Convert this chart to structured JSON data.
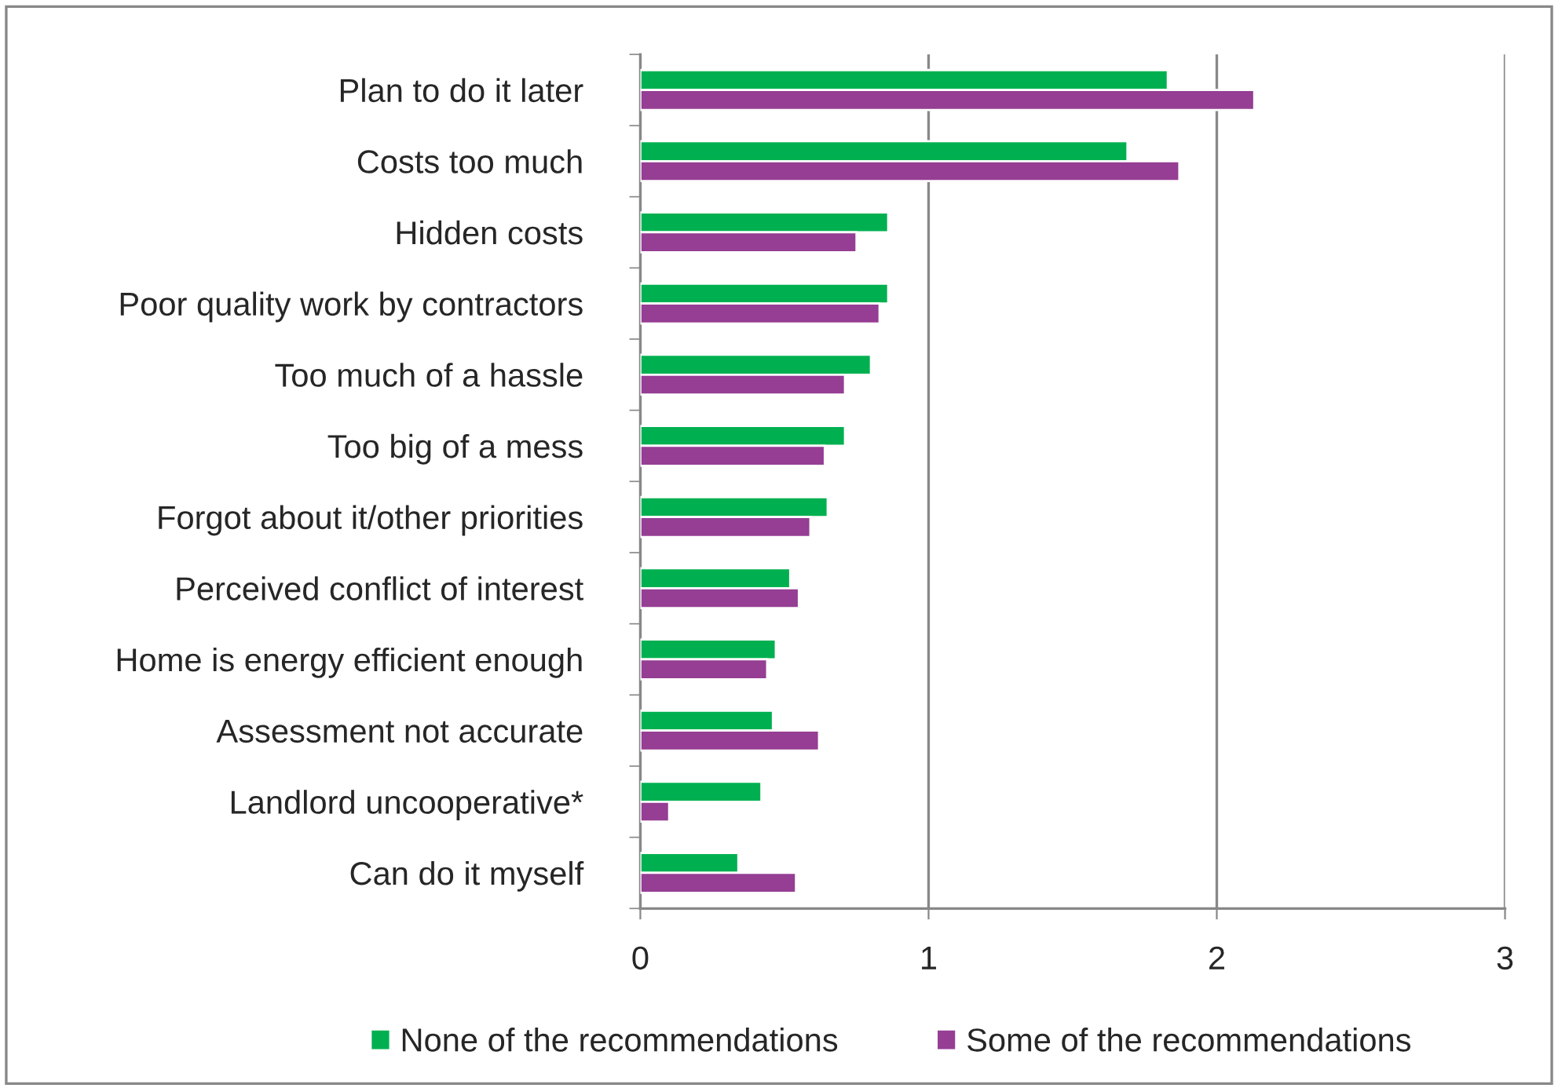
{
  "chart_data": {
    "type": "bar",
    "orientation": "horizontal",
    "categories": [
      "Plan to do it later",
      "Costs too much",
      "Hidden costs",
      "Poor quality work by contractors",
      "Too much of a hassle",
      "Too big of a mess",
      "Forgot about it/other priorities",
      "Perceived conflict of interest",
      "Home is energy efficient enough",
      "Assessment not accurate",
      "Landlord uncooperative*",
      "Can do it myself"
    ],
    "series": [
      {
        "name": "None of the recommendations",
        "color": "#00b050",
        "values": [
          1.83,
          1.69,
          0.86,
          0.86,
          0.8,
          0.71,
          0.65,
          0.52,
          0.47,
          0.46,
          0.42,
          0.34
        ]
      },
      {
        "name": "Some of the recommendations",
        "color": "#953e93",
        "values": [
          2.13,
          1.87,
          0.75,
          0.83,
          0.71,
          0.64,
          0.59,
          0.55,
          0.44,
          0.62,
          0.1,
          0.54
        ]
      }
    ],
    "xlim": [
      0,
      3
    ],
    "xticks": [
      0,
      1,
      2,
      3
    ],
    "grid": "x",
    "legend": "bottom"
  }
}
